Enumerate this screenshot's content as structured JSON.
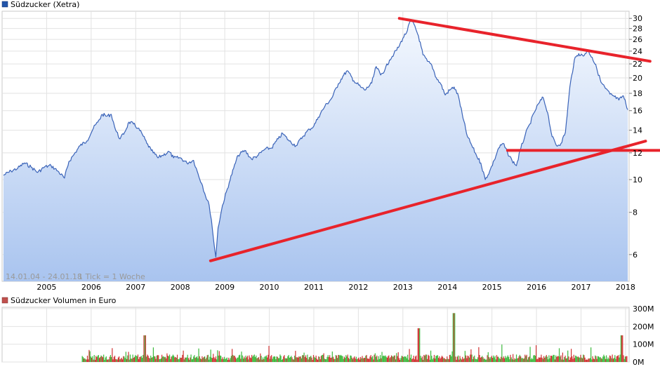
{
  "chart_data": [
    {
      "type": "line",
      "title": "Südzucker (Xetra)",
      "legend_color": "#2255aa",
      "line_color": "#3a63b8",
      "scale": "log",
      "ylim": [
        5,
        31.5
      ],
      "xlim": [
        2004.0,
        2018.08
      ],
      "y_ticks": [
        6,
        8,
        10,
        12,
        14,
        16,
        18,
        20,
        22,
        24,
        26,
        28,
        30
      ],
      "x_ticks": [
        "2005",
        "2006",
        "2007",
        "2008",
        "2009",
        "2010",
        "2011",
        "2012",
        "2013",
        "2014",
        "2015",
        "2016",
        "2017",
        "2018"
      ],
      "range_text": "14.01.04 - 24.01.18",
      "tick_text": "1 Tick = 1 Woche",
      "series": [
        {
          "name": "Südzucker (Xetra)",
          "x": [
            2004.03,
            2004.2,
            2004.35,
            2004.5,
            2004.65,
            2004.8,
            2004.95,
            2005.1,
            2005.25,
            2005.4,
            2005.5,
            2005.6,
            2005.75,
            2005.9,
            2006.05,
            2006.15,
            2006.25,
            2006.35,
            2006.45,
            2006.5,
            2006.55,
            2006.65,
            2006.75,
            2006.85,
            2006.95,
            2007.05,
            2007.15,
            2007.25,
            2007.35,
            2007.5,
            2007.6,
            2007.75,
            2007.85,
            2008.0,
            2008.15,
            2008.3,
            2008.4,
            2008.5,
            2008.55,
            2008.65,
            2008.7,
            2008.75,
            2008.8,
            2008.85,
            2008.95,
            2009.1,
            2009.2,
            2009.3,
            2009.45,
            2009.6,
            2009.75,
            2009.9,
            2010.05,
            2010.2,
            2010.3,
            2010.45,
            2010.6,
            2010.75,
            2010.9,
            2011.0,
            2011.1,
            2011.25,
            2011.4,
            2011.55,
            2011.65,
            2011.75,
            2011.9,
            2012.05,
            2012.15,
            2012.3,
            2012.4,
            2012.5,
            2012.6,
            2012.7,
            2012.8,
            2012.9,
            2013.0,
            2013.1,
            2013.17,
            2013.25,
            2013.35,
            2013.45,
            2013.55,
            2013.65,
            2013.75,
            2013.85,
            2013.95,
            2014.05,
            2014.15,
            2014.25,
            2014.35,
            2014.45,
            2014.55,
            2014.65,
            2014.75,
            2014.85,
            2014.95,
            2015.05,
            2015.15,
            2015.25,
            2015.35,
            2015.45,
            2015.55,
            2015.65,
            2015.75,
            2015.85,
            2015.95,
            2016.05,
            2016.15,
            2016.25,
            2016.35,
            2016.45,
            2016.55,
            2016.65,
            2016.75,
            2016.85,
            2016.95,
            2017.05,
            2017.15,
            2017.25,
            2017.35,
            2017.45,
            2017.55,
            2017.65,
            2017.75,
            2017.85,
            2017.95,
            2018.05
          ],
          "y": [
            10.3,
            10.6,
            10.8,
            11.2,
            10.9,
            10.5,
            10.9,
            11.0,
            10.6,
            10.1,
            11.3,
            11.8,
            12.6,
            13.0,
            14.2,
            14.8,
            15.6,
            15.4,
            15.6,
            14.8,
            14.0,
            13.2,
            13.8,
            14.8,
            14.6,
            14.2,
            13.6,
            12.8,
            12.2,
            11.6,
            11.8,
            12.1,
            11.6,
            11.6,
            11.2,
            11.4,
            10.4,
            9.6,
            9.1,
            8.4,
            7.6,
            6.6,
            5.9,
            7.2,
            8.4,
            9.8,
            10.8,
            11.8,
            12.2,
            11.5,
            11.8,
            12.3,
            12.4,
            13.2,
            13.7,
            13.0,
            12.6,
            13.4,
            14.1,
            14.4,
            15.3,
            16.5,
            17.4,
            19.2,
            20.2,
            21.0,
            19.6,
            18.8,
            18.4,
            19.3,
            21.6,
            20.4,
            21.2,
            22.6,
            23.6,
            24.6,
            26.2,
            27.6,
            29.6,
            28.8,
            26.6,
            23.4,
            22.4,
            21.8,
            20.0,
            19.2,
            17.8,
            18.4,
            18.8,
            17.6,
            15.2,
            13.4,
            12.6,
            11.8,
            11.2,
            10.0,
            10.6,
            11.4,
            12.4,
            12.8,
            12.0,
            11.4,
            11.0,
            12.4,
            13.6,
            14.6,
            15.8,
            16.8,
            17.5,
            15.8,
            13.4,
            12.6,
            12.8,
            13.8,
            18.8,
            22.6,
            23.6,
            23.2,
            24.2,
            23.0,
            21.4,
            19.4,
            18.6,
            17.9,
            17.6,
            17.2,
            17.7,
            16.1
          ]
        }
      ],
      "trendlines": [
        {
          "name": "resistance",
          "color": "#e8232b",
          "points": [
            [
              2012.92,
              30.0
            ],
            [
              2018.55,
              22.4
            ]
          ]
        },
        {
          "name": "support",
          "color": "#e8232b",
          "points": [
            [
              2008.68,
              5.75
            ],
            [
              2018.45,
              13.0
            ]
          ]
        },
        {
          "name": "horizontal",
          "color": "#e8232b",
          "points": [
            [
              2015.35,
              12.2
            ],
            [
              2018.8,
              12.2
            ]
          ]
        }
      ]
    },
    {
      "type": "bar",
      "title": "Südzucker Volumen in Euro",
      "legend_color": "#c0504d",
      "ylim": [
        0,
        300
      ],
      "y_ticks": [
        "300M",
        "200M",
        "100M",
        "0M"
      ],
      "y_tick_values": [
        300,
        200,
        100,
        0
      ],
      "x_start": 2005.8,
      "x_end": 2018.05,
      "bars_per_year": 52,
      "colors": {
        "up": "#3cb93c",
        "down": "#d03434"
      },
      "seasonal_peak_month": 0.5,
      "notes": "Weekly volume bars roughly 20-60M typical with spikes up to about 280M in early 2014 and 150M in late 2017."
    }
  ]
}
